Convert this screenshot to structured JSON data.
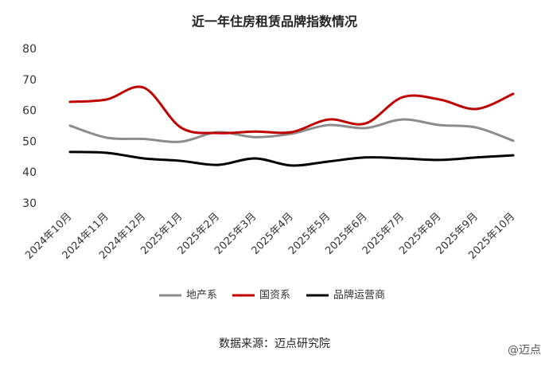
{
  "chart_data": {
    "type": "line",
    "title": "近一年住房租赁品牌指数情况",
    "categories": [
      "2024年10月",
      "2024年11月",
      "2024年12月",
      "2025年1月",
      "2025年2月",
      "2025年3月",
      "2025年4月",
      "2025年5月",
      "2025年6月",
      "2025年7月",
      "2025年8月",
      "2025年9月",
      "2025年10月"
    ],
    "series": [
      {
        "name": "地产系",
        "color": "#8c8c8c",
        "values": [
          55.3,
          51.4,
          51.0,
          50.1,
          53.2,
          51.6,
          52.7,
          55.5,
          54.5,
          57.3,
          55.5,
          54.7,
          50.4
        ]
      },
      {
        "name": "国资系",
        "color": "#c00000",
        "values": [
          63.0,
          63.8,
          67.6,
          54.7,
          52.9,
          53.4,
          53.2,
          57.3,
          56.0,
          64.5,
          63.8,
          60.7,
          65.6
        ]
      },
      {
        "name": "品牌运营商",
        "color": "#000000",
        "values": [
          46.8,
          46.5,
          44.7,
          43.9,
          42.6,
          44.7,
          42.4,
          43.7,
          45.0,
          44.7,
          44.2,
          45.0,
          45.7
        ]
      }
    ],
    "ylim": [
      30,
      80
    ],
    "yticks": [
      30,
      40,
      50,
      60,
      70,
      80
    ],
    "grid": false,
    "source": "数据来源：迈点研究院",
    "corner_note": "@迈点"
  }
}
